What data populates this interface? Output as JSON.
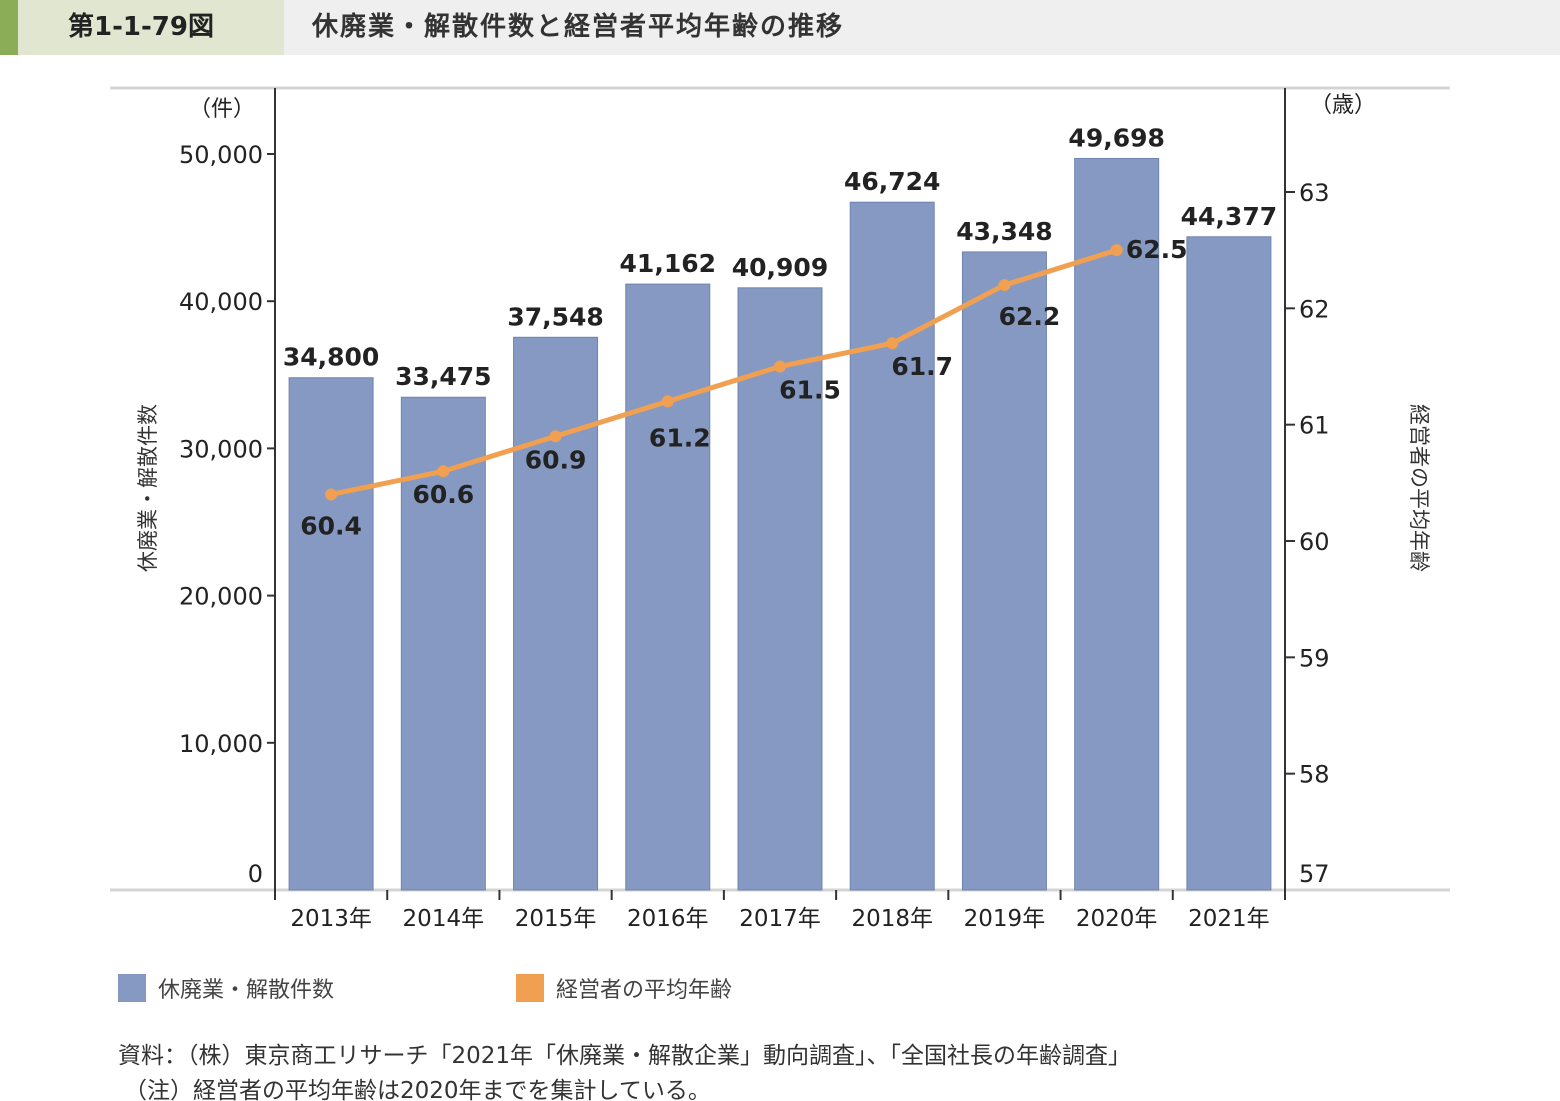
{
  "header": {
    "figure_number": "第1-1-79図",
    "title": "休廃業・解散件数と経営者平均年齢の推移"
  },
  "chart_data": {
    "type": "bar+line",
    "categories": [
      "2013年",
      "2014年",
      "2015年",
      "2016年",
      "2017年",
      "2018年",
      "2019年",
      "2020年",
      "2021年"
    ],
    "series": [
      {
        "name": "休廃業・解散件数",
        "type": "bar",
        "axis": "left",
        "color": "#8599c2",
        "values": [
          34800,
          33475,
          37548,
          41162,
          40909,
          46724,
          43348,
          49698,
          44377
        ],
        "labels": [
          "34,800",
          "33,475",
          "37,548",
          "41,162",
          "40,909",
          "46,724",
          "43,348",
          "49,698",
          "44,377"
        ]
      },
      {
        "name": "経営者の平均年齢",
        "type": "line",
        "axis": "right",
        "color": "#f0a050",
        "values": [
          60.4,
          60.6,
          60.9,
          61.2,
          61.5,
          61.7,
          62.2,
          62.5,
          null
        ],
        "labels": [
          "60.4",
          "60.6",
          "60.9",
          "61.2",
          "61.5",
          "61.7",
          "62.2",
          "62.5",
          ""
        ]
      }
    ],
    "left_axis": {
      "label": "休廃業・解散件数",
      "unit": "（件）",
      "range": [
        0,
        54500
      ],
      "ticks": [
        "0",
        "10,000",
        "20,000",
        "30,000",
        "40,000",
        "50,000"
      ],
      "tick_values": [
        0,
        10000,
        20000,
        30000,
        40000,
        50000
      ]
    },
    "right_axis": {
      "label": "経営者の平均年齢",
      "unit": "（歳）",
      "range": [
        57,
        63.7
      ],
      "ticks": [
        "57",
        "58",
        "59",
        "60",
        "61",
        "62",
        "63"
      ],
      "tick_values": [
        57,
        58,
        59,
        60,
        61,
        62,
        63
      ]
    },
    "grid": false,
    "legend": "bottom-left"
  },
  "footer": {
    "source": "資料：（株）東京商工リサーチ「2021年「休廃業・解散企業」動向調査」、「全国社長の年齢調査」",
    "note": "（注）経営者の平均年齢は2020年までを集計している。"
  }
}
